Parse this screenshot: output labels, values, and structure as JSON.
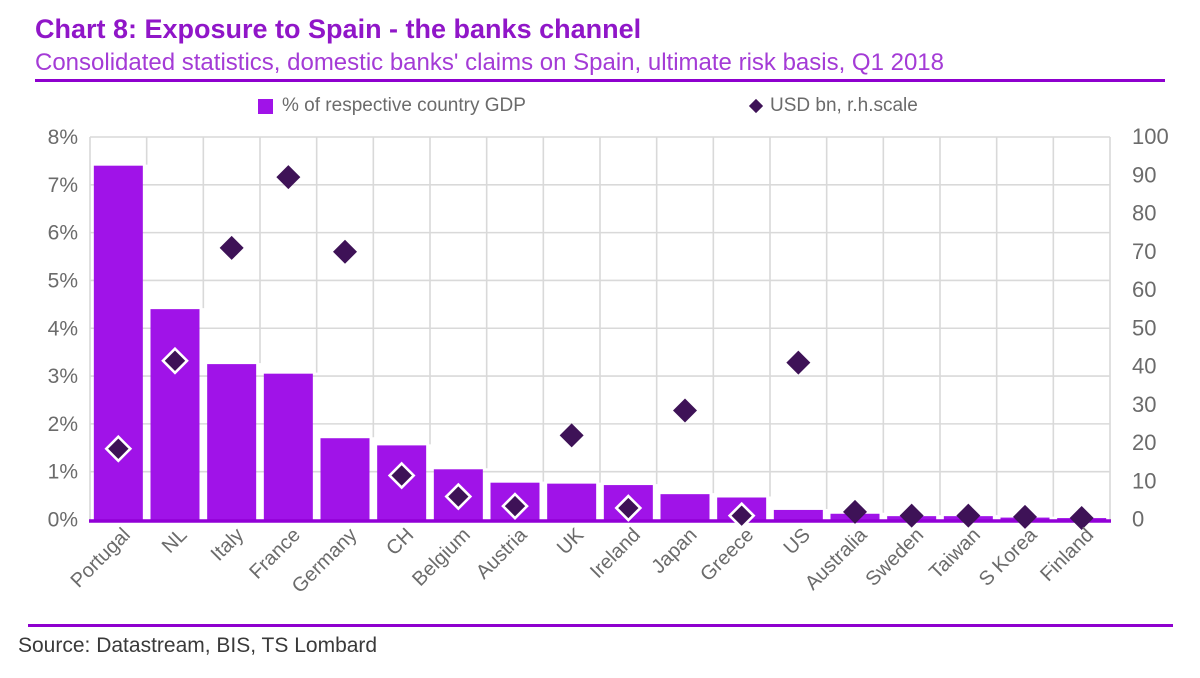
{
  "header": {
    "title": "Chart 8: Exposure to Spain - the banks channel",
    "subtitle": "Consolidated statistics, domestic banks' claims on Spain, ultimate risk basis, Q1 2018"
  },
  "legend": {
    "bars_label": "% of respective country GDP",
    "diamonds_label": "USD bn, r.h.scale"
  },
  "source": "Source: Datastream, BIS, TS Lombard",
  "colors": {
    "bar": "#A013E8",
    "diamond": "#3E1257",
    "axis_line": "#9100D6",
    "grid": "#D9D9D9",
    "title": "#9016C8",
    "subtitle": "#A43BD6",
    "rule": "#8E00CE",
    "text_gray": "#6B6B6B",
    "source_text": "#3A3A3A"
  },
  "chart_data": {
    "type": "bar+scatter",
    "categories": [
      "Portugal",
      "NL",
      "Italy",
      "France",
      "Germany",
      "CH",
      "Belgium",
      "Austria",
      "UK",
      "Ireland",
      "Japan",
      "Greece",
      "US",
      "Australia",
      "Sweden",
      "Taiwan",
      "S Korea",
      "Finland"
    ],
    "series": [
      {
        "name": "% of respective country GDP",
        "type": "bar",
        "axis": "left",
        "values": [
          7.4,
          4.4,
          3.25,
          3.05,
          1.7,
          1.55,
          1.05,
          0.77,
          0.75,
          0.72,
          0.53,
          0.46,
          0.2,
          0.12,
          0.07,
          0.07,
          0.04,
          0.03
        ]
      },
      {
        "name": "USD bn, r.h.scale",
        "type": "scatter-diamond",
        "axis": "right",
        "values": [
          18.5,
          41.5,
          71,
          89.5,
          70,
          11.5,
          6,
          3.5,
          22,
          3,
          28.5,
          1,
          41,
          2,
          1,
          1,
          0.7,
          0.4
        ]
      }
    ],
    "left_axis": {
      "min": 0,
      "max": 8,
      "ticks": [
        "0%",
        "1%",
        "2%",
        "3%",
        "4%",
        "5%",
        "6%",
        "7%",
        "8%"
      ]
    },
    "right_axis": {
      "min": 0,
      "max": 100,
      "ticks": [
        "0",
        "10",
        "20",
        "30",
        "40",
        "50",
        "60",
        "70",
        "80",
        "90",
        "100"
      ]
    },
    "grid": true,
    "legend_position": "top"
  }
}
